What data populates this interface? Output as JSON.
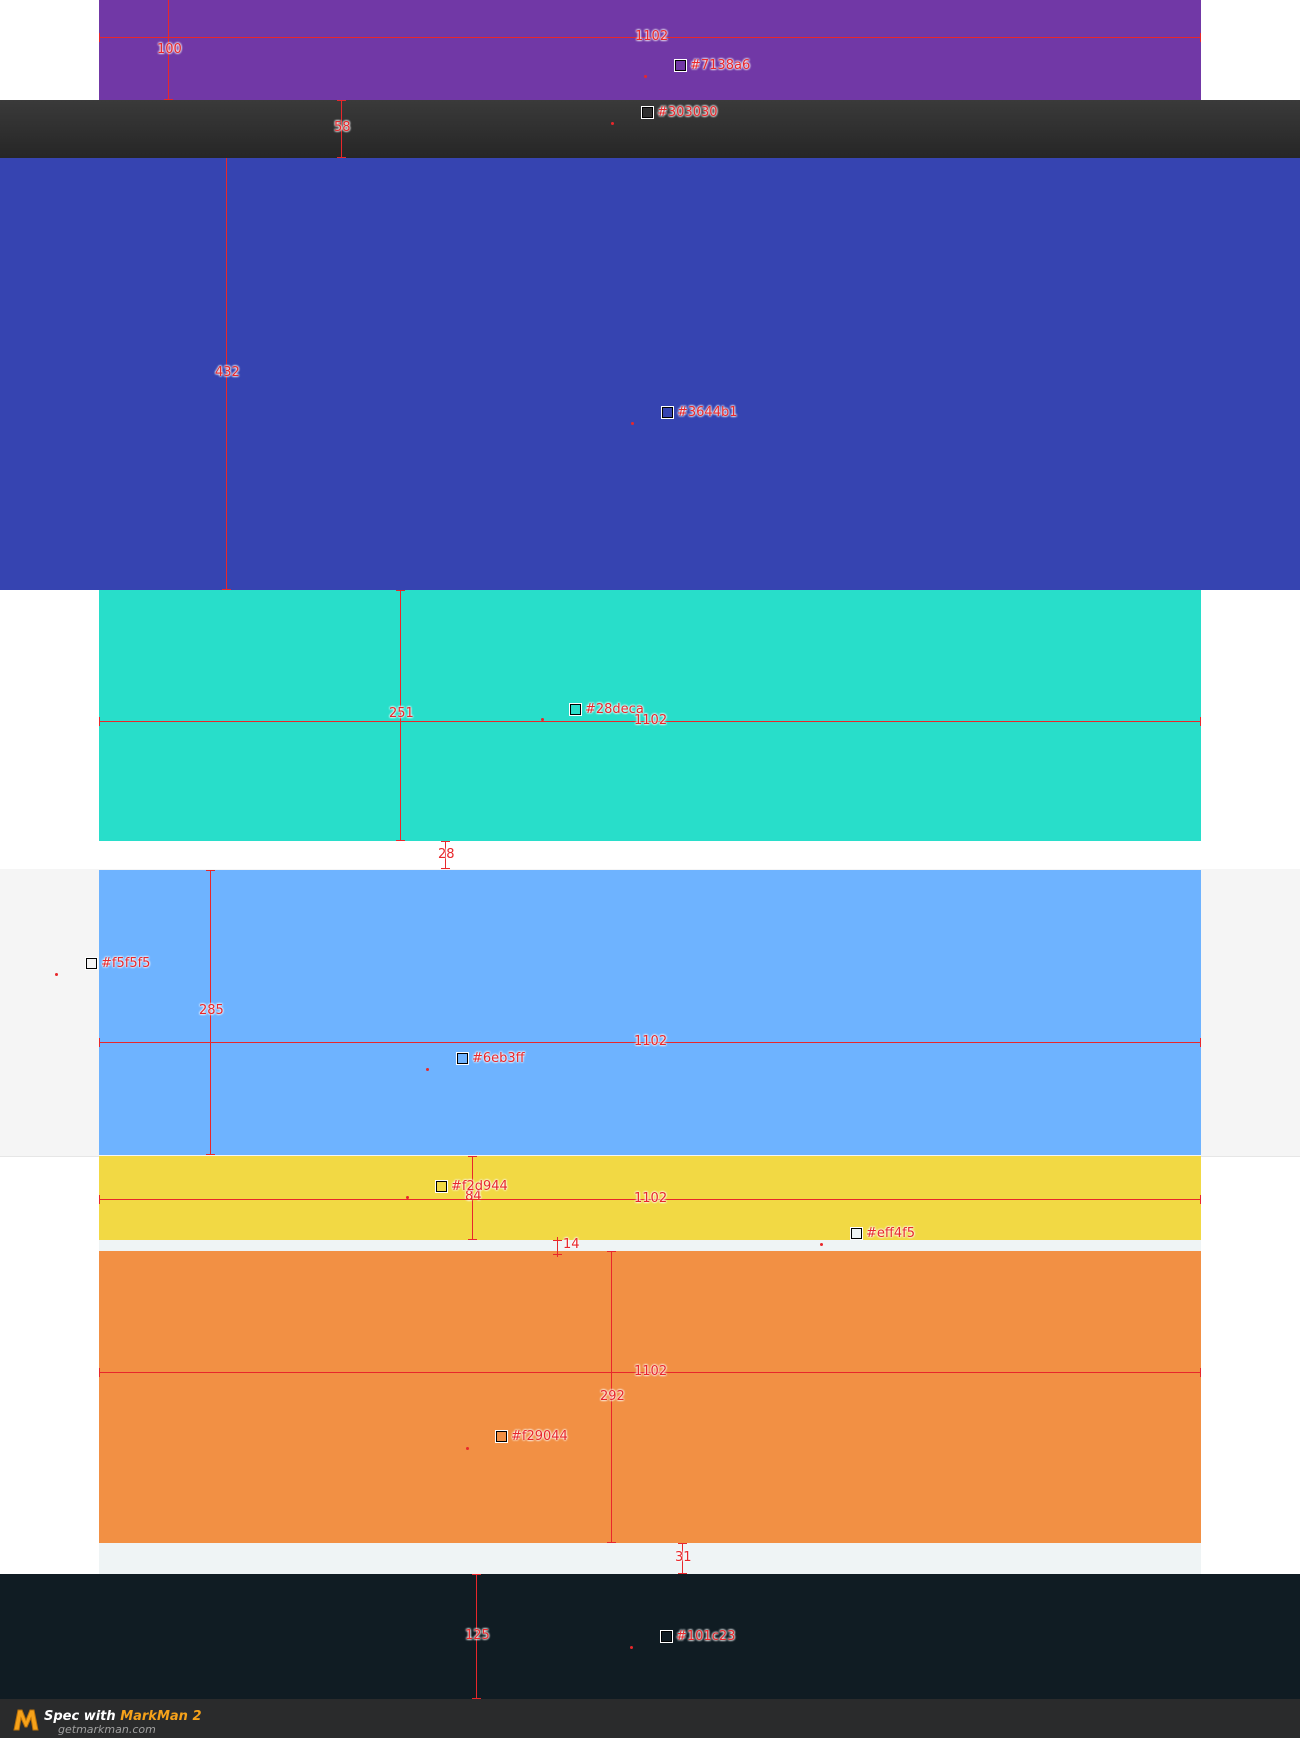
{
  "sections": [
    {
      "id": "purple",
      "color": "#7138a6"
    },
    {
      "id": "dark-bar",
      "color": "#303030"
    },
    {
      "id": "indigo",
      "color": "#3644b1"
    },
    {
      "id": "teal",
      "color": "#28deca"
    },
    {
      "id": "gray-band",
      "color": "#f5f5f5"
    },
    {
      "id": "blue",
      "color": "#6eb3ff"
    },
    {
      "id": "yellow",
      "color": "#f2d944"
    },
    {
      "id": "light-gap",
      "color": "#eff4f5"
    },
    {
      "id": "orange",
      "color": "#f29044"
    },
    {
      "id": "footer-dark",
      "color": "#101c23"
    }
  ],
  "labels": {
    "purple_width": "1102",
    "purple_height": "100",
    "purple_color": "#7138a6",
    "bar_color": "#303030",
    "bar_height": "58",
    "indigo_height": "432",
    "indigo_color": "#3644b1",
    "teal_height": "251",
    "teal_color": "#28deca",
    "teal_width": "1102",
    "gap_28": "28",
    "gray_color": "#f5f5f5",
    "blue_height": "285",
    "blue_width": "1102",
    "blue_color": "#6eb3ff",
    "yellow_color": "#f2d944",
    "yellow_height": "84",
    "yellow_width": "1102",
    "light_color": "#eff4f5",
    "gap_14": "14",
    "orange_width": "1102",
    "orange_height": "292",
    "orange_color": "#f29044",
    "gap_31": "31",
    "dark_height": "125",
    "dark_color": "#101c23"
  },
  "footer": {
    "spec_text": "Spec with ",
    "brand": "MarkMan 2",
    "url": "getmarkman.com"
  }
}
